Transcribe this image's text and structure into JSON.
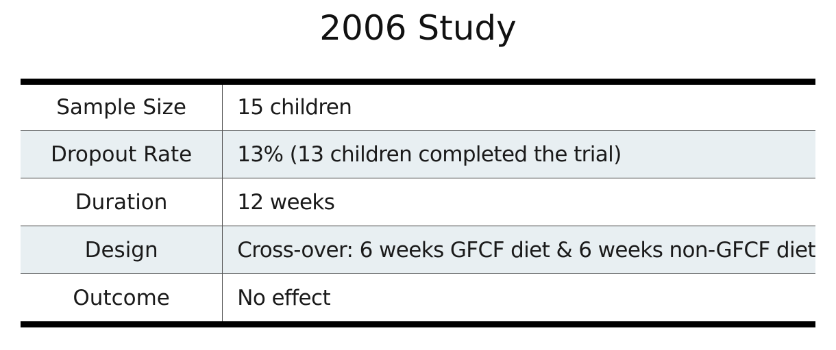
{
  "title": "2006 Study",
  "rows": [
    {
      "label": "Sample Size",
      "value": "15 children"
    },
    {
      "label": "Dropout Rate",
      "value": "13% (13 children completed the trial)"
    },
    {
      "label": "Duration",
      "value": "12 weeks"
    },
    {
      "label": "Design",
      "value": "Cross-over: 6 weeks GFCF diet & 6 weeks non-GFCF diet"
    },
    {
      "label": "Outcome",
      "value": "No effect"
    }
  ],
  "colors": {
    "shaded_row": "#e8eff2",
    "rule": "#000000"
  }
}
